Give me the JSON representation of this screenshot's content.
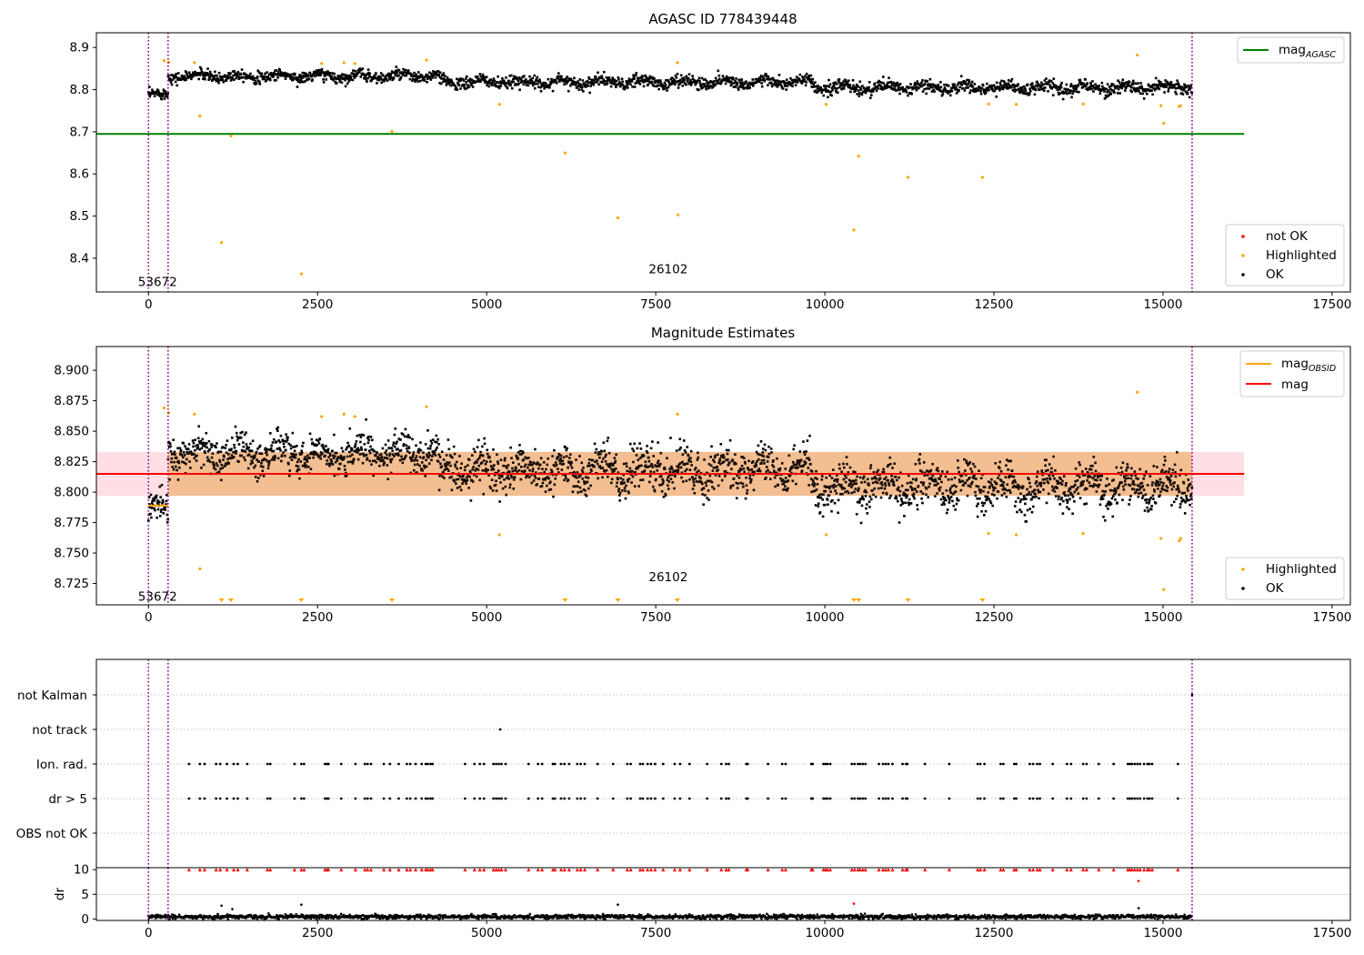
{
  "chart_data": [
    {
      "type": "scatter",
      "title": "AGASC ID 778439448",
      "xlim": [
        -770,
        17770
      ],
      "ylim": [
        8.32,
        8.935
      ],
      "x_ticks": [
        0,
        2500,
        5000,
        7500,
        10000,
        12500,
        15000,
        17500
      ],
      "x_tick_labels": [
        "0",
        "2500",
        "5000",
        "7500",
        "10000",
        "12500",
        "15000",
        "17500"
      ],
      "y_ticks": [
        8.4,
        8.5,
        8.6,
        8.7,
        8.8,
        8.9
      ],
      "y_tick_labels": [
        "8.4",
        "8.5",
        "8.6",
        "8.7",
        "8.8",
        "8.9"
      ],
      "vlines": [
        0,
        290,
        15430
      ],
      "annotations": [
        {
          "text": "53672",
          "x": 0,
          "y": 8.345
        },
        {
          "text": "26102",
          "x": 7550,
          "y": 8.375
        }
      ],
      "reference_lines": [
        {
          "name": "mag",
          "subscript": "AGASC",
          "y": 8.695,
          "x_range": [
            -770,
            16200
          ],
          "color": "#008000"
        }
      ],
      "band": null,
      "series": [
        {
          "name": "OK",
          "color": "#000000",
          "segments": [
            {
              "x": [
                0,
                290
              ],
              "mean": 8.787,
              "spread": 0.012
            },
            {
              "x": [
                290,
                4300
              ],
              "mean": 8.832,
              "spread": 0.012
            },
            {
              "x": [
                4300,
                9800
              ],
              "mean": 8.818,
              "spread": 0.013
            },
            {
              "x": [
                9800,
                15430
              ],
              "mean": 8.805,
              "spread": 0.014
            }
          ]
        },
        {
          "name": "Highlighted",
          "color": "#ffa500",
          "x": [
            230,
            300,
            680,
            760,
            1080,
            1220,
            2260,
            2560,
            2890,
            3050,
            3600,
            4110,
            5190,
            6160,
            6940,
            7820,
            7830,
            10020,
            10430,
            10500,
            11230,
            12330,
            12420,
            12830,
            13820,
            14620,
            14970,
            15010,
            15240,
            15260
          ],
          "y": [
            8.869,
            8.865,
            8.864,
            8.737,
            8.437,
            8.69,
            8.363,
            8.862,
            8.864,
            8.862,
            8.701,
            8.87,
            8.765,
            8.65,
            8.496,
            8.864,
            8.503,
            8.765,
            8.467,
            8.642,
            8.592,
            8.592,
            8.766,
            8.765,
            8.766,
            8.882,
            8.762,
            8.72,
            8.76,
            8.762
          ]
        },
        {
          "name": "not OK",
          "color": "#ff0000",
          "x": [],
          "y": []
        }
      ],
      "legends": [
        {
          "position": "upper-right",
          "items": [
            {
              "label": "mag",
              "subscript": "AGASC",
              "kind": "line",
              "color": "#008000"
            }
          ]
        },
        {
          "position": "lower-right",
          "items": [
            {
              "label": "not OK",
              "kind": "marker",
              "color": "#ff0000"
            },
            {
              "label": "Highlighted",
              "kind": "marker",
              "color": "#ffa500"
            },
            {
              "label": "OK",
              "kind": "marker",
              "color": "#000000"
            }
          ]
        }
      ]
    },
    {
      "type": "scatter",
      "title": "Magnitude Estimates",
      "xlim": [
        -770,
        17770
      ],
      "ylim": [
        8.7075,
        8.9195
      ],
      "x_ticks": [
        0,
        2500,
        5000,
        7500,
        10000,
        12500,
        15000,
        17500
      ],
      "x_tick_labels": [
        "0",
        "2500",
        "5000",
        "7500",
        "10000",
        "12500",
        "15000",
        "17500"
      ],
      "y_ticks": [
        8.725,
        8.75,
        8.775,
        8.8,
        8.825,
        8.85,
        8.875,
        8.9
      ],
      "y_tick_labels": [
        "8.725",
        "8.750",
        "8.775",
        "8.800",
        "8.825",
        "8.850",
        "8.875",
        "8.900"
      ],
      "vlines": [
        0,
        290,
        15430
      ],
      "annotations": [
        {
          "text": "53672",
          "x": 0,
          "y": 8.7145
        },
        {
          "text": "26102",
          "x": 7550,
          "y": 8.7305
        }
      ],
      "reference_lines": [
        {
          "name": "mag",
          "y": 8.815,
          "x_range": [
            -770,
            16200
          ],
          "color": "#ff0000"
        }
      ],
      "obsid_steps": [
        {
          "x": [
            0,
            290
          ],
          "y": 8.789
        },
        {
          "x": [
            290,
            15430
          ],
          "y": 8.815
        }
      ],
      "band": {
        "y": [
          8.797,
          8.833
        ],
        "x_range": [
          -770,
          16200
        ],
        "inner_x_range": [
          290,
          15430
        ]
      },
      "series": [
        {
          "name": "OK",
          "color": "#000000",
          "segments": [
            {
              "x": [
                0,
                290
              ],
              "mean": 8.787,
              "spread": 0.011
            },
            {
              "x": [
                290,
                4300
              ],
              "mean": 8.832,
              "spread": 0.013
            },
            {
              "x": [
                4300,
                9800
              ],
              "mean": 8.818,
              "spread": 0.015
            },
            {
              "x": [
                9800,
                15430
              ],
              "mean": 8.805,
              "spread": 0.016
            }
          ]
        },
        {
          "name": "Highlighted",
          "color": "#ffa500",
          "x": [
            230,
            300,
            680,
            760,
            2560,
            2890,
            3050,
            4110,
            5190,
            7820,
            10020,
            12420,
            12830,
            13820,
            14620,
            14970,
            15010,
            15240,
            15260
          ],
          "y": [
            8.869,
            8.865,
            8.864,
            8.737,
            8.862,
            8.864,
            8.862,
            8.87,
            8.765,
            8.864,
            8.765,
            8.766,
            8.765,
            8.766,
            8.882,
            8.762,
            8.72,
            8.76,
            8.762
          ],
          "below_axis_x": [
            1080,
            1220,
            2260,
            3600,
            6160,
            6940,
            7820,
            10430,
            10500,
            11230,
            12330
          ]
        }
      ],
      "legends": [
        {
          "position": "upper-right",
          "items": [
            {
              "label": "mag",
              "subscript": "OBSID",
              "kind": "line",
              "color": "#ffa500"
            },
            {
              "label": "mag",
              "kind": "line",
              "color": "#ff0000"
            }
          ]
        },
        {
          "position": "lower-right",
          "items": [
            {
              "label": "Highlighted",
              "kind": "marker",
              "color": "#ffa500"
            },
            {
              "label": "OK",
              "kind": "marker",
              "color": "#000000"
            }
          ]
        }
      ]
    },
    {
      "type": "scatter",
      "title": "",
      "xlim": [
        -770,
        17770
      ],
      "categories": [
        "OBS not OK",
        "dr > 5",
        "Ion. rad.",
        "not track",
        "not Kalman"
      ],
      "vlines": [
        0,
        290,
        15430
      ],
      "flag_rows": {
        "not Kalman": {
          "x": [
            15430
          ]
        },
        "not track": {
          "x": [
            5200
          ]
        },
        "Ion. rad.": {
          "x": [
            600,
            760,
            830,
            1000,
            1060,
            1160,
            1260,
            1320,
            1460,
            1760,
            1800,
            2160,
            2260,
            2300,
            2610,
            2640,
            2660,
            2850,
            3060,
            3200,
            3240,
            3290,
            3480,
            3570,
            3700,
            3820,
            3870,
            3950,
            4040,
            4100,
            4130,
            4170,
            4200,
            4680,
            4820,
            4900,
            4960,
            5100,
            5140,
            5180,
            5220,
            5280,
            5620,
            5760,
            5820,
            5980,
            6010,
            6100,
            6150,
            6220,
            6340,
            6390,
            6450,
            6640,
            6870,
            7080,
            7130,
            7270,
            7310,
            7380,
            7430,
            7490,
            7610,
            7780,
            7860,
            8000,
            8260,
            8470,
            8540,
            8580,
            8840,
            8860,
            9160,
            9370,
            9420,
            9800,
            9820,
            9980,
            10010,
            10040,
            10080,
            10400,
            10440,
            10490,
            10520,
            10560,
            10600,
            10800,
            10860,
            10900,
            10940,
            11000,
            11150,
            11200,
            11220,
            11480,
            11840,
            12260,
            12300,
            12360,
            12600,
            12640,
            12800,
            12830,
            13030,
            13080,
            13140,
            13180,
            13370,
            13580,
            13640,
            13820,
            13870,
            14050,
            14270,
            14480,
            14510,
            14540,
            14580,
            14620,
            14660,
            14720,
            14770,
            14800,
            14840,
            15220
          ]
        },
        "dr > 5": {
          "x": [
            600,
            760,
            830,
            1000,
            1060,
            1160,
            1260,
            1320,
            1460,
            1760,
            1800,
            2160,
            2260,
            2300,
            2610,
            2640,
            2660,
            2850,
            3060,
            3200,
            3240,
            3290,
            3480,
            3570,
            3700,
            3820,
            3870,
            3950,
            4040,
            4100,
            4130,
            4170,
            4200,
            4680,
            4820,
            4900,
            4960,
            5100,
            5140,
            5180,
            5220,
            5280,
            5620,
            5760,
            5820,
            5980,
            6010,
            6100,
            6150,
            6220,
            6340,
            6390,
            6450,
            6640,
            6870,
            7080,
            7130,
            7270,
            7310,
            7380,
            7430,
            7490,
            7610,
            7780,
            7860,
            8000,
            8260,
            8470,
            8540,
            8580,
            8840,
            8860,
            9160,
            9370,
            9420,
            9800,
            9820,
            9980,
            10010,
            10040,
            10080,
            10400,
            10440,
            10490,
            10520,
            10560,
            10600,
            10800,
            10860,
            10900,
            10940,
            11000,
            11150,
            11200,
            11220,
            11480,
            11840,
            12260,
            12300,
            12360,
            12600,
            12640,
            12800,
            12830,
            13030,
            13080,
            13140,
            13180,
            13370,
            13580,
            13640,
            13820,
            13870,
            14050,
            14270,
            14480,
            14510,
            14540,
            14580,
            14620,
            14660,
            14720,
            14770,
            14800,
            14840,
            15220
          ]
        },
        "OBS not OK": {
          "x": []
        }
      }
    },
    {
      "type": "scatter",
      "title": "",
      "ylabel": "dr",
      "xlim": [
        -770,
        17770
      ],
      "ylim": [
        -0.3,
        10.4
      ],
      "x_ticks": [
        0,
        2500,
        5000,
        7500,
        10000,
        12500,
        15000,
        17500
      ],
      "x_tick_labels": [
        "0",
        "2500",
        "5000",
        "7500",
        "10000",
        "12500",
        "15000",
        "17500"
      ],
      "y_ticks": [
        0,
        5,
        10
      ],
      "y_tick_labels": [
        "0",
        "5",
        "10"
      ],
      "vlines": [
        0,
        290,
        15430
      ],
      "clipped_value": 10,
      "baseline": {
        "mean": 0.45,
        "spread": 0.35,
        "x_range": [
          0,
          15430
        ]
      },
      "isolated_points": [
        {
          "x": 1080,
          "y": 2.7
        },
        {
          "x": 1240,
          "y": 2.0
        },
        {
          "x": 2260,
          "y": 2.9
        },
        {
          "x": 6940,
          "y": 2.9
        },
        {
          "x": 10430,
          "y": 3.1,
          "color": "#ff0000"
        },
        {
          "x": 14640,
          "y": 7.7,
          "color": "#ff0000"
        },
        {
          "x": 14640,
          "y": 2.2
        }
      ]
    }
  ]
}
